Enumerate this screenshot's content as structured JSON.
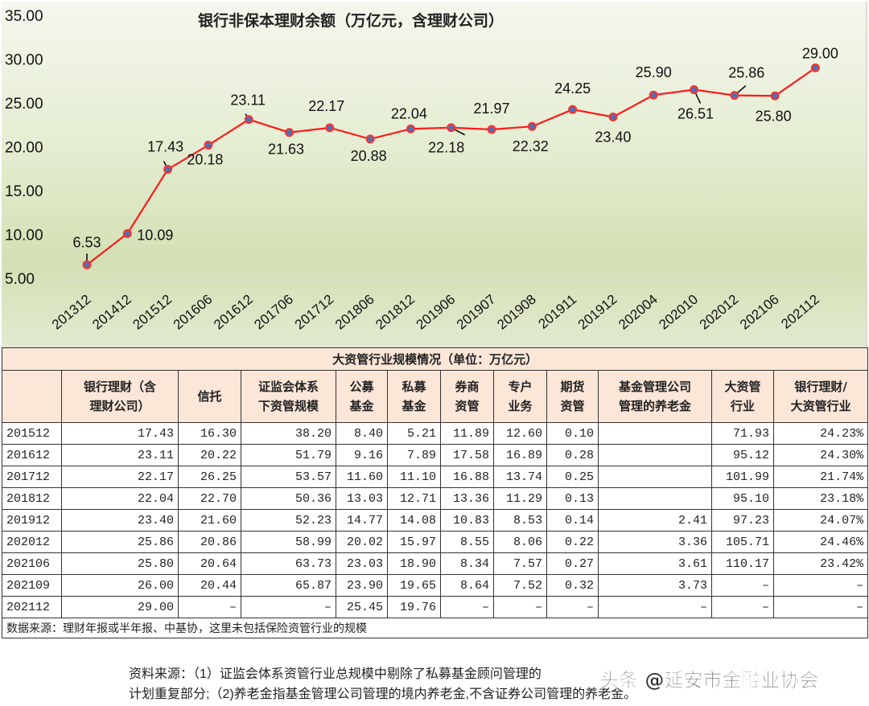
{
  "chart_data": {
    "type": "line",
    "title": "银行非保本理财余额（万亿元，含理财公司）",
    "xlabel": "",
    "ylabel": "",
    "ylim": [
      5,
      35
    ],
    "yticks": [
      "5.00",
      "10.00",
      "15.00",
      "20.00",
      "25.00",
      "30.00",
      "35.00"
    ],
    "grid": false,
    "legend": null,
    "categories": [
      "201312",
      "201412",
      "201512",
      "201606",
      "201612",
      "201706",
      "201712",
      "201806",
      "201812",
      "201906",
      "201907",
      "201908",
      "201911",
      "201912",
      "202004",
      "202010",
      "202012",
      "202106",
      "202112"
    ],
    "series": [
      {
        "name": "银行非保本理财余额",
        "color": "#ff1a1a",
        "marker_color": "#4f6fb0",
        "values": [
          6.53,
          10.09,
          17.43,
          20.18,
          23.11,
          21.63,
          22.17,
          20.88,
          22.04,
          22.18,
          21.97,
          22.32,
          24.25,
          23.4,
          25.9,
          26.51,
          25.86,
          25.8,
          29.0
        ]
      }
    ],
    "data_labels": [
      "6.53",
      "10.09",
      "17.43",
      "20.18",
      "23.11",
      "21.63",
      "22.17",
      "20.88",
      "22.04",
      "22.18",
      "21.97",
      "22.32",
      "24.25",
      "23.40",
      "25.90",
      "26.51",
      "25.86",
      "25.80",
      "29.00"
    ]
  },
  "table": {
    "title": "大资管行业规模情况（单位：万亿元）",
    "headers": [
      "",
      "银行理财（含理财公司）",
      "信托",
      "证监会体系下资管规模",
      "公募基金",
      "私募基金",
      "券商资管",
      "专户业务",
      "期货资管",
      "基金管理公司管理的养老金",
      "大资管行业",
      "银行理财/大资管行业"
    ],
    "headers_display": [
      "",
      "银行理财（含\n理财公司）",
      "信托",
      "证监会体系\n下资管规模",
      "公募\n基金",
      "私募\n基金",
      "券商\n资管",
      "专户\n业务",
      "期货\n资管",
      "基金管理公司\n管理的养老金",
      "大资管\n行业",
      "银行理财/\n大资管行业"
    ],
    "rows": [
      [
        "201512",
        "17.43",
        "16.30",
        "38.20",
        "8.40",
        "5.21",
        "11.89",
        "12.60",
        "0.10",
        "",
        "71.93",
        "24.23%"
      ],
      [
        "201612",
        "23.11",
        "20.22",
        "51.79",
        "9.16",
        "7.89",
        "17.58",
        "16.89",
        "0.28",
        "",
        "95.12",
        "24.30%"
      ],
      [
        "201712",
        "22.17",
        "26.25",
        "53.57",
        "11.60",
        "11.10",
        "16.88",
        "13.74",
        "0.25",
        "",
        "101.99",
        "21.74%"
      ],
      [
        "201812",
        "22.04",
        "22.70",
        "50.36",
        "13.03",
        "12.71",
        "13.36",
        "11.29",
        "0.13",
        "",
        "95.10",
        "23.18%"
      ],
      [
        "201912",
        "23.40",
        "21.60",
        "52.23",
        "14.77",
        "14.08",
        "10.83",
        "8.53",
        "0.14",
        "2.41",
        "97.23",
        "24.07%"
      ],
      [
        "202012",
        "25.86",
        "20.86",
        "58.99",
        "20.02",
        "15.97",
        "8.55",
        "8.06",
        "0.22",
        "3.36",
        "105.71",
        "24.46%"
      ],
      [
        "202106",
        "25.80",
        "20.64",
        "63.73",
        "23.03",
        "18.90",
        "8.34",
        "7.57",
        "0.27",
        "3.61",
        "110.17",
        "23.42%"
      ],
      [
        "202109",
        "26.00",
        "20.44",
        "65.87",
        "23.90",
        "19.65",
        "8.64",
        "7.52",
        "0.32",
        "3.73",
        "–",
        "–"
      ],
      [
        "202112",
        "29.00",
        "–",
        "–",
        "25.45",
        "19.76",
        "–",
        "–",
        "–",
        "–",
        "–",
        "–"
      ]
    ],
    "note": "数据来源：理财年报或半年报、中基协，这里未包括保险资管行业的规模"
  },
  "footnote": {
    "line1": "资料来源：（1）证监会体系资管行业总规模中剔除了私募基金顾问管理的",
    "line2": "计划重复部分;（2)养老金指基金管理公司管理的境内养老金,不含证券公司管理的养老金。"
  },
  "watermark": "头条 @延安市金融业协会",
  "colors": {
    "line": "#ff1a1a",
    "marker_fill": "#4f6fb0",
    "table_header_bg": "#fbe6d8",
    "chart_bg_top": "#f4f7ee",
    "chart_bg_bottom": "#d3e0b4"
  }
}
